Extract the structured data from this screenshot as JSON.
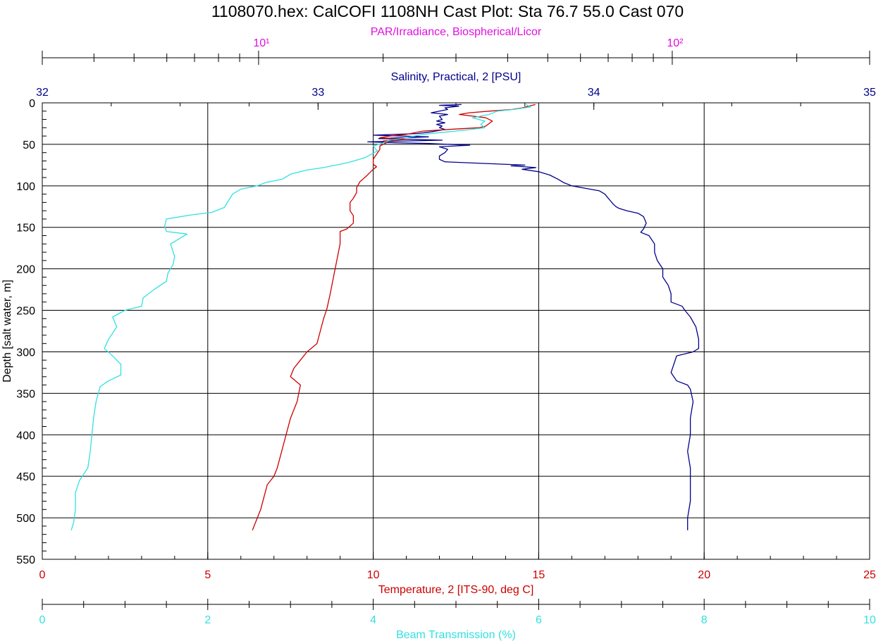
{
  "chart_data": {
    "type": "line",
    "title": "1108070.hex: CalCOFI 1108NH Cast Plot: Sta 76.7 55.0 Cast 070",
    "y_axis": {
      "label": "Depth [salt water, m]",
      "range": [
        0,
        550
      ],
      "inverted": true,
      "ticks": [
        "0",
        "50",
        "100",
        "150",
        "200",
        "250",
        "300",
        "350",
        "400",
        "450",
        "500",
        "550"
      ]
    },
    "x_axes": [
      {
        "id": "par",
        "position": "top-outer",
        "label": "PAR/Irradiance, Biospherical/Licor",
        "scale": "log",
        "range": [
          3,
          300
        ],
        "ticks": [
          10,
          100
        ],
        "tick_labels": [
          "10¹",
          "10²"
        ],
        "color": "#e010e0"
      },
      {
        "id": "salinity",
        "position": "top-inner",
        "label": "Salinity, Practical, 2 [PSU]",
        "scale": "linear",
        "range": [
          32,
          35
        ],
        "ticks": [
          "32",
          "33",
          "34",
          "35"
        ],
        "color": "#00008b"
      },
      {
        "id": "temperature",
        "position": "bottom-inner",
        "label": "Temperature, 2 [ITS-90, deg C]",
        "scale": "linear",
        "range": [
          0,
          25
        ],
        "ticks": [
          "0",
          "5",
          "10",
          "15",
          "20",
          "25"
        ],
        "color": "#cc0000"
      },
      {
        "id": "beam",
        "position": "bottom-outer",
        "label": "Beam Transmission (%)",
        "scale": "linear",
        "range": [
          0,
          10
        ],
        "ticks": [
          "0",
          "2",
          "4",
          "6",
          "8",
          "10"
        ],
        "color": "#33e0e0"
      }
    ],
    "grid": true,
    "series": [
      {
        "axis": "salinity",
        "color": "#00008b",
        "points": [
          [
            33.52,
            2
          ],
          [
            33.44,
            3
          ],
          [
            33.51,
            4
          ],
          [
            33.46,
            6
          ],
          [
            33.47,
            8
          ],
          [
            33.41,
            12
          ],
          [
            33.47,
            14
          ],
          [
            33.44,
            16
          ],
          [
            33.45,
            20
          ],
          [
            33.43,
            22
          ],
          [
            33.46,
            24
          ],
          [
            33.43,
            26
          ],
          [
            33.45,
            28
          ],
          [
            33.44,
            30
          ],
          [
            33.46,
            32
          ],
          [
            33.41,
            35
          ],
          [
            33.36,
            37
          ],
          [
            33.2,
            39
          ],
          [
            33.4,
            41
          ],
          [
            33.22,
            43
          ],
          [
            33.45,
            45
          ],
          [
            33.18,
            47
          ],
          [
            33.28,
            48
          ],
          [
            33.4,
            49
          ],
          [
            33.55,
            51
          ],
          [
            33.44,
            53
          ],
          [
            33.47,
            56
          ],
          [
            33.46,
            60
          ],
          [
            33.44,
            64
          ],
          [
            33.44,
            68
          ],
          [
            33.46,
            71
          ],
          [
            33.6,
            73
          ],
          [
            33.75,
            75
          ],
          [
            33.7,
            76
          ],
          [
            33.79,
            78
          ],
          [
            33.74,
            80
          ],
          [
            33.8,
            83
          ],
          [
            33.84,
            87
          ],
          [
            33.87,
            92
          ],
          [
            33.89,
            96
          ],
          [
            33.92,
            100
          ],
          [
            33.97,
            103
          ],
          [
            34.02,
            106
          ],
          [
            34.04,
            110
          ],
          [
            34.05,
            114
          ],
          [
            34.06,
            118
          ],
          [
            34.07,
            122
          ],
          [
            34.08,
            125
          ],
          [
            34.09,
            127
          ],
          [
            34.12,
            130
          ],
          [
            34.16,
            133
          ],
          [
            34.18,
            137
          ],
          [
            34.19,
            145
          ],
          [
            34.18,
            152
          ],
          [
            34.17,
            156
          ],
          [
            34.2,
            160
          ],
          [
            34.22,
            170
          ],
          [
            34.22,
            180
          ],
          [
            34.23,
            190
          ],
          [
            34.25,
            200
          ],
          [
            34.25,
            210
          ],
          [
            34.27,
            220
          ],
          [
            34.28,
            230
          ],
          [
            34.28,
            240
          ],
          [
            34.32,
            245
          ],
          [
            34.33,
            250
          ],
          [
            34.35,
            258
          ],
          [
            34.37,
            270
          ],
          [
            34.38,
            285
          ],
          [
            34.38,
            296
          ],
          [
            34.36,
            300
          ],
          [
            34.3,
            305
          ],
          [
            34.29,
            315
          ],
          [
            34.28,
            325
          ],
          [
            34.3,
            335
          ],
          [
            34.34,
            340
          ],
          [
            34.35,
            345
          ],
          [
            34.36,
            360
          ],
          [
            34.35,
            380
          ],
          [
            34.35,
            400
          ],
          [
            34.34,
            420
          ],
          [
            34.35,
            440
          ],
          [
            34.35,
            460
          ],
          [
            34.35,
            480
          ],
          [
            34.34,
            500
          ],
          [
            34.34,
            515
          ]
        ]
      },
      {
        "axis": "temperature",
        "color": "#cc0000",
        "points": [
          [
            14.9,
            2
          ],
          [
            14.5,
            6
          ],
          [
            14.2,
            8
          ],
          [
            13.5,
            10
          ],
          [
            12.9,
            12
          ],
          [
            12.6,
            14
          ],
          [
            13.4,
            18
          ],
          [
            13.6,
            22
          ],
          [
            13.4,
            28
          ],
          [
            13.2,
            30
          ],
          [
            12.3,
            32
          ],
          [
            11.5,
            34
          ],
          [
            11.0,
            38
          ],
          [
            10.5,
            40
          ],
          [
            10.2,
            42
          ],
          [
            11.0,
            44
          ],
          [
            10.3,
            46
          ],
          [
            10.4,
            48
          ],
          [
            10.2,
            52
          ],
          [
            10.2,
            56
          ],
          [
            10.1,
            62
          ],
          [
            10.0,
            68
          ],
          [
            10.0,
            74
          ],
          [
            10.1,
            77
          ],
          [
            10.0,
            80
          ],
          [
            9.8,
            88
          ],
          [
            9.6,
            95
          ],
          [
            9.5,
            102
          ],
          [
            9.5,
            108
          ],
          [
            9.4,
            115
          ],
          [
            9.3,
            120
          ],
          [
            9.3,
            130
          ],
          [
            9.4,
            136
          ],
          [
            9.4,
            145
          ],
          [
            9.2,
            152
          ],
          [
            9.0,
            155
          ],
          [
            9.0,
            170
          ],
          [
            8.9,
            190
          ],
          [
            8.8,
            210
          ],
          [
            8.7,
            230
          ],
          [
            8.6,
            248
          ],
          [
            8.5,
            260
          ],
          [
            8.4,
            275
          ],
          [
            8.3,
            290
          ],
          [
            8.0,
            300
          ],
          [
            7.8,
            310
          ],
          [
            7.6,
            320
          ],
          [
            7.5,
            330
          ],
          [
            7.8,
            340
          ],
          [
            7.7,
            360
          ],
          [
            7.5,
            380
          ],
          [
            7.4,
            395
          ],
          [
            7.3,
            410
          ],
          [
            7.2,
            425
          ],
          [
            7.1,
            440
          ],
          [
            7.0,
            450
          ],
          [
            6.8,
            460
          ],
          [
            6.7,
            475
          ],
          [
            6.6,
            490
          ],
          [
            6.5,
            500
          ],
          [
            6.4,
            510
          ],
          [
            6.35,
            515
          ]
        ]
      },
      {
        "axis": "beam",
        "color": "#33e0e0",
        "points": [
          [
            5.85,
            2
          ],
          [
            5.9,
            5
          ],
          [
            5.7,
            8
          ],
          [
            5.5,
            10
          ],
          [
            5.4,
            14
          ],
          [
            5.2,
            18
          ],
          [
            5.35,
            22
          ],
          [
            5.3,
            26
          ],
          [
            5.35,
            30
          ],
          [
            5.1,
            33
          ],
          [
            4.9,
            35
          ],
          [
            4.6,
            38
          ],
          [
            4.4,
            42
          ],
          [
            4.2,
            45
          ],
          [
            4.1,
            49
          ],
          [
            4.0,
            52
          ],
          [
            4.05,
            58
          ],
          [
            3.9,
            66
          ],
          [
            3.7,
            72
          ],
          [
            3.4,
            78
          ],
          [
            3.2,
            81
          ],
          [
            3.0,
            86
          ],
          [
            2.9,
            92
          ],
          [
            2.7,
            96
          ],
          [
            2.6,
            100
          ],
          [
            2.4,
            104
          ],
          [
            2.3,
            110
          ],
          [
            2.25,
            118
          ],
          [
            2.2,
            126
          ],
          [
            2.05,
            132
          ],
          [
            1.8,
            135
          ],
          [
            1.5,
            140
          ],
          [
            1.48,
            148
          ],
          [
            1.5,
            155
          ],
          [
            1.75,
            158
          ],
          [
            1.55,
            170
          ],
          [
            1.6,
            185
          ],
          [
            1.58,
            195
          ],
          [
            1.52,
            205
          ],
          [
            1.5,
            215
          ],
          [
            1.35,
            225
          ],
          [
            1.22,
            235
          ],
          [
            1.2,
            245
          ],
          [
            1.0,
            250
          ],
          [
            0.85,
            258
          ],
          [
            0.9,
            270
          ],
          [
            0.8,
            285
          ],
          [
            0.75,
            296
          ],
          [
            0.85,
            305
          ],
          [
            0.95,
            315
          ],
          [
            0.95,
            328
          ],
          [
            0.8,
            335
          ],
          [
            0.7,
            342
          ],
          [
            0.65,
            360
          ],
          [
            0.62,
            380
          ],
          [
            0.6,
            400
          ],
          [
            0.58,
            420
          ],
          [
            0.55,
            440
          ],
          [
            0.45,
            455
          ],
          [
            0.4,
            470
          ],
          [
            0.4,
            490
          ],
          [
            0.38,
            505
          ],
          [
            0.35,
            515
          ]
        ]
      }
    ]
  }
}
